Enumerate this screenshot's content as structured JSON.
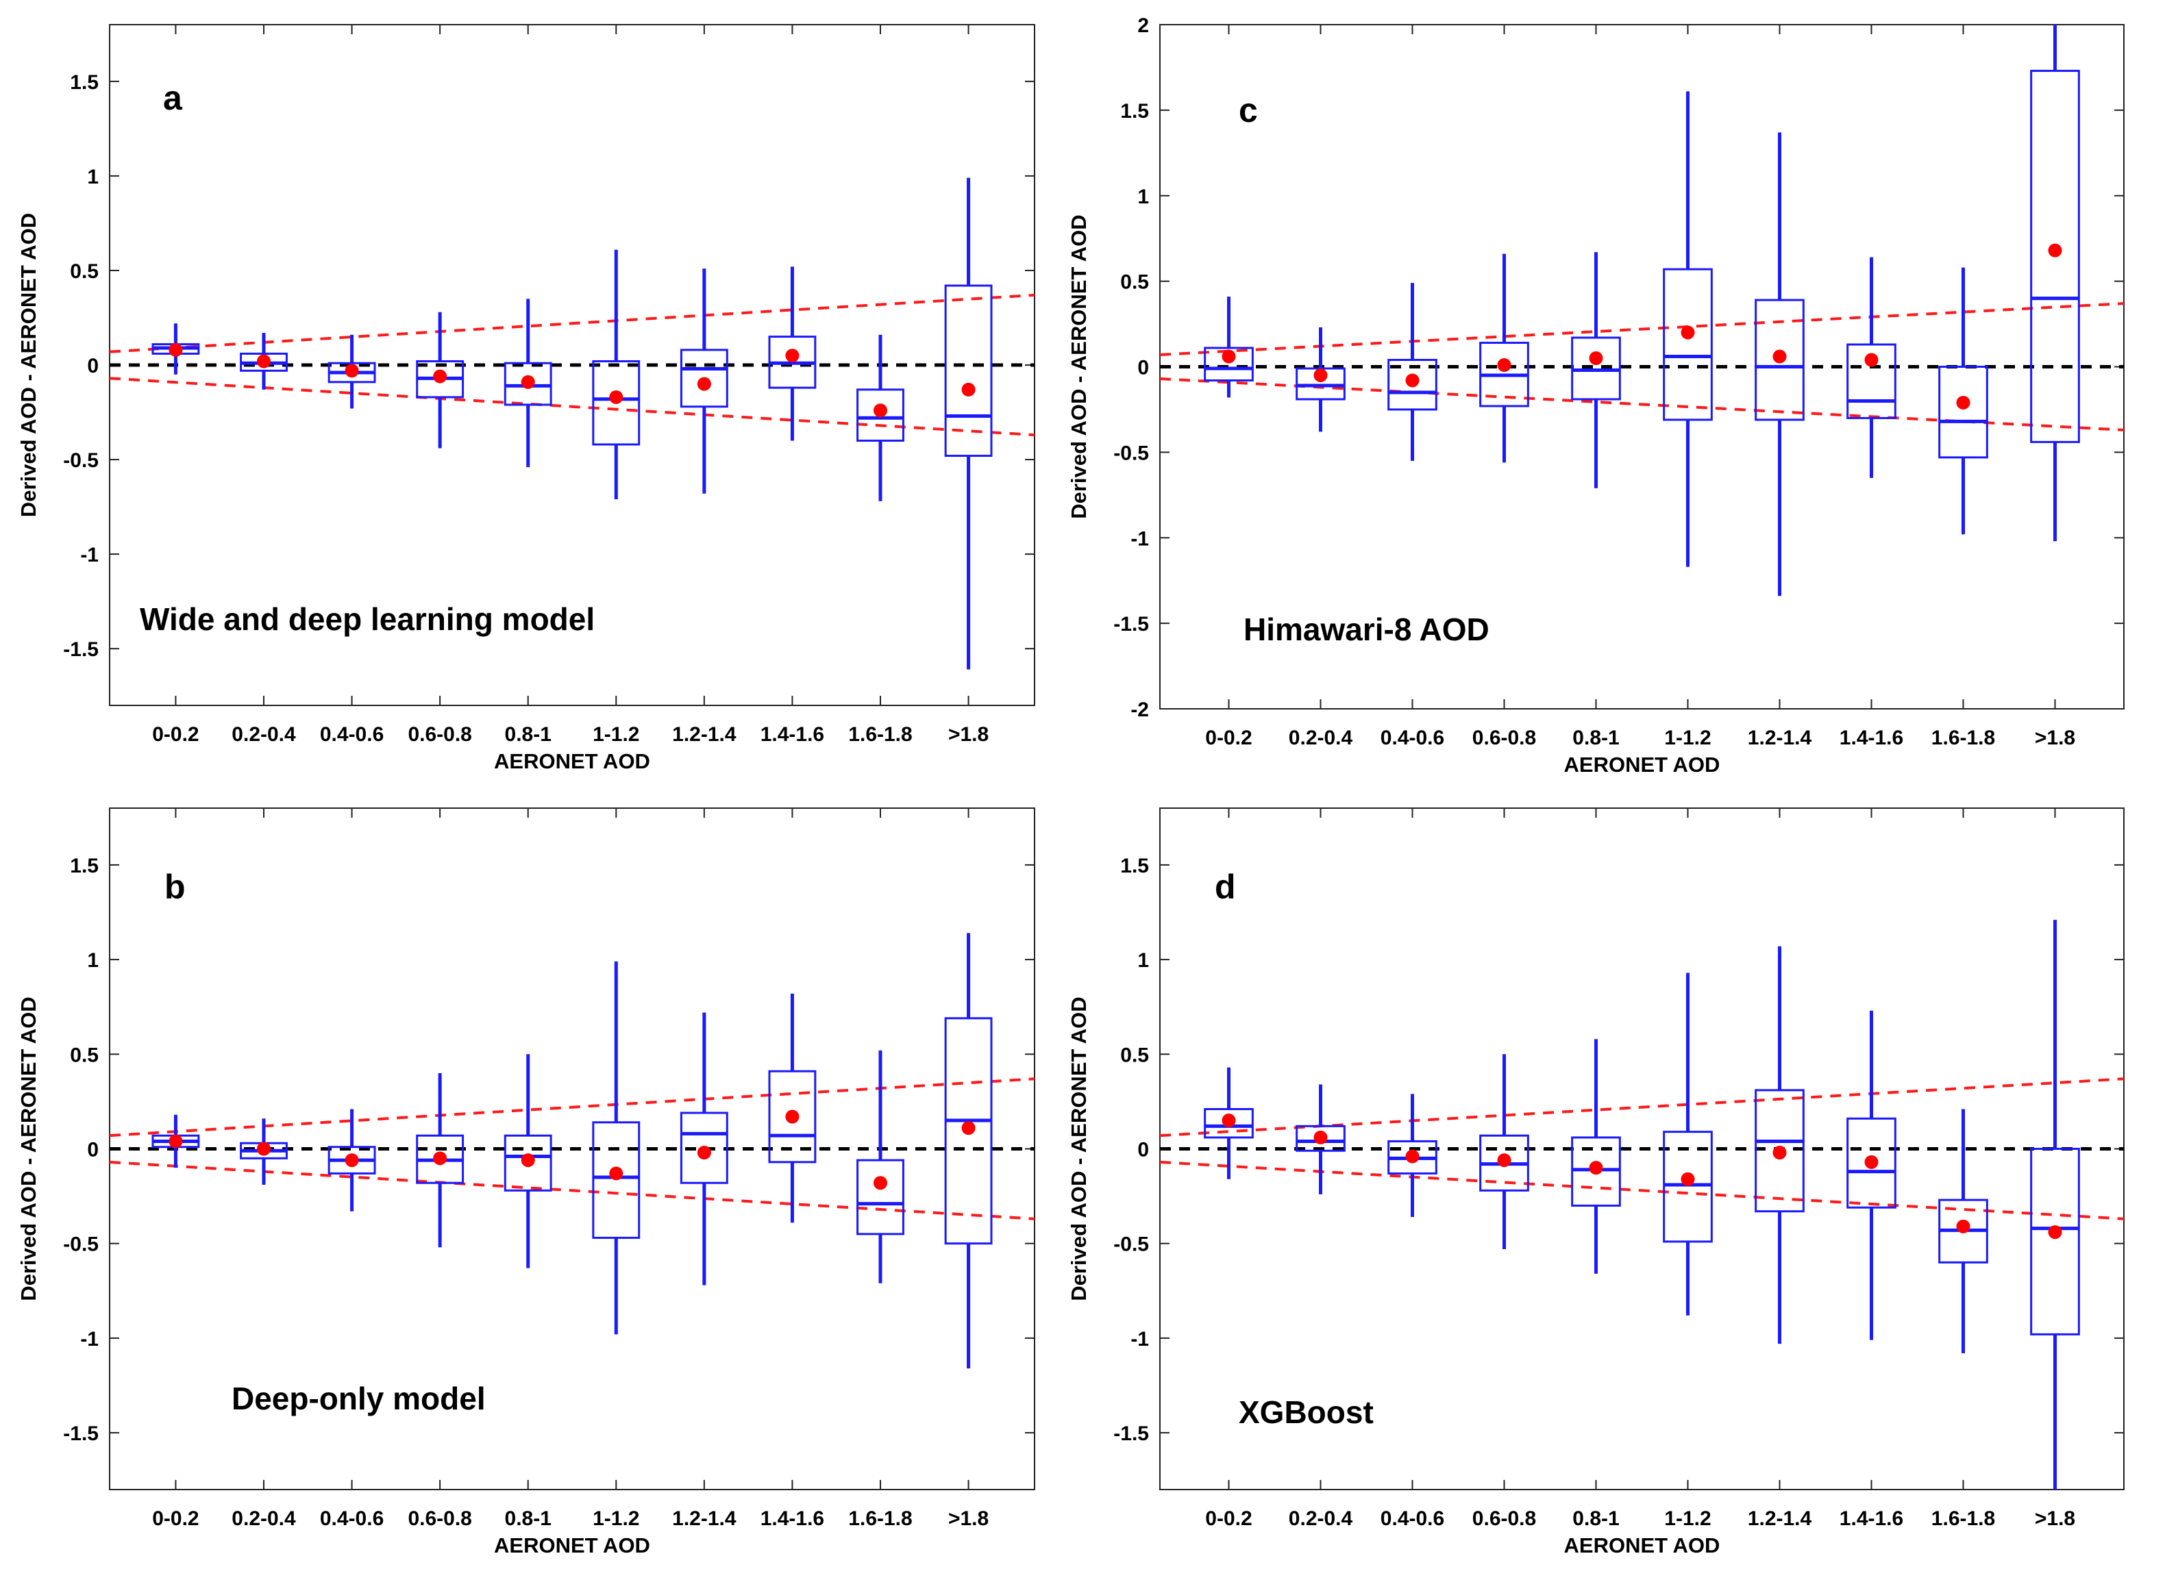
{
  "chart_data": [
    {
      "type": "boxplot",
      "panel_label": "a",
      "annotation": "Wide and deep learning model",
      "xlabel": "AERONET AOD",
      "ylabel": "Derived AOD - AERONET AOD",
      "ylim": [
        -1.8,
        1.8
      ],
      "yticks": [
        -1.5,
        -1,
        -0.5,
        0,
        0.5,
        1,
        1.5
      ],
      "categories": [
        "0-0.2",
        "0.2-0.4",
        "0.4-0.6",
        "0.6-0.8",
        "0.8-1",
        "1-1.2",
        "1.2-1.4",
        "1.4-1.6",
        "1.6-1.8",
        ">1.8"
      ],
      "boxes": [
        {
          "whisker_low": -0.05,
          "q1": 0.06,
          "median": 0.09,
          "q3": 0.11,
          "whisker_high": 0.22,
          "mean": 0.08
        },
        {
          "whisker_low": -0.13,
          "q1": -0.03,
          "median": 0.01,
          "q3": 0.06,
          "whisker_high": 0.17,
          "mean": 0.02
        },
        {
          "whisker_low": -0.23,
          "q1": -0.09,
          "median": -0.04,
          "q3": 0.01,
          "whisker_high": 0.16,
          "mean": -0.03
        },
        {
          "whisker_low": -0.44,
          "q1": -0.17,
          "median": -0.07,
          "q3": 0.02,
          "whisker_high": 0.28,
          "mean": -0.06
        },
        {
          "whisker_low": -0.54,
          "q1": -0.21,
          "median": -0.11,
          "q3": 0.01,
          "whisker_high": 0.35,
          "mean": -0.09
        },
        {
          "whisker_low": -0.71,
          "q1": -0.42,
          "median": -0.18,
          "q3": 0.02,
          "whisker_high": 0.61,
          "mean": -0.17
        },
        {
          "whisker_low": -0.68,
          "q1": -0.22,
          "median": -0.02,
          "q3": 0.08,
          "whisker_high": 0.51,
          "mean": -0.1
        },
        {
          "whisker_low": -0.4,
          "q1": -0.12,
          "median": 0.01,
          "q3": 0.15,
          "whisker_high": 0.52,
          "mean": 0.05
        },
        {
          "whisker_low": -0.72,
          "q1": -0.4,
          "median": -0.28,
          "q3": -0.13,
          "whisker_high": 0.16,
          "mean": -0.24
        },
        {
          "whisker_low": -1.61,
          "q1": -0.48,
          "median": -0.27,
          "q3": 0.42,
          "whisker_high": 0.99,
          "mean": -0.13
        }
      ]
    },
    {
      "type": "boxplot",
      "panel_label": "b",
      "annotation": "Deep-only model",
      "xlabel": "AERONET AOD",
      "ylabel": "Derived AOD - AERONET AOD",
      "ylim": [
        -1.8,
        1.8
      ],
      "yticks": [
        -1.5,
        -1,
        -0.5,
        0,
        0.5,
        1,
        1.5
      ],
      "categories": [
        "0-0.2",
        "0.2-0.4",
        "0.4-0.6",
        "0.6-0.8",
        "0.8-1",
        "1-1.2",
        "1.2-1.4",
        "1.4-1.6",
        "1.6-1.8",
        ">1.8"
      ],
      "boxes": [
        {
          "whisker_low": -0.1,
          "q1": 0.01,
          "median": 0.04,
          "q3": 0.07,
          "whisker_high": 0.18,
          "mean": 0.04
        },
        {
          "whisker_low": -0.19,
          "q1": -0.05,
          "median": -0.01,
          "q3": 0.03,
          "whisker_high": 0.16,
          "mean": 0.0
        },
        {
          "whisker_low": -0.33,
          "q1": -0.13,
          "median": -0.06,
          "q3": 0.01,
          "whisker_high": 0.21,
          "mean": -0.06
        },
        {
          "whisker_low": -0.52,
          "q1": -0.18,
          "median": -0.06,
          "q3": 0.07,
          "whisker_high": 0.4,
          "mean": -0.05
        },
        {
          "whisker_low": -0.63,
          "q1": -0.22,
          "median": -0.04,
          "q3": 0.07,
          "whisker_high": 0.5,
          "mean": -0.06
        },
        {
          "whisker_low": -0.98,
          "q1": -0.47,
          "median": -0.15,
          "q3": 0.14,
          "whisker_high": 0.99,
          "mean": -0.13
        },
        {
          "whisker_low": -0.72,
          "q1": -0.18,
          "median": 0.08,
          "q3": 0.19,
          "whisker_high": 0.72,
          "mean": -0.02
        },
        {
          "whisker_low": -0.39,
          "q1": -0.07,
          "median": 0.07,
          "q3": 0.41,
          "whisker_high": 0.82,
          "mean": 0.17
        },
        {
          "whisker_low": -0.71,
          "q1": -0.45,
          "median": -0.29,
          "q3": -0.06,
          "whisker_high": 0.52,
          "mean": -0.18
        },
        {
          "whisker_low": -1.16,
          "q1": -0.5,
          "median": 0.15,
          "q3": 0.69,
          "whisker_high": 1.14,
          "mean": 0.11
        }
      ]
    },
    {
      "type": "boxplot",
      "panel_label": "c",
      "annotation": "Himawari-8 AOD",
      "xlabel": "AERONET AOD",
      "ylabel": "Derived AOD - AERONET AOD",
      "ylim": [
        -2,
        2
      ],
      "yticks": [
        -2,
        -1.5,
        -1,
        -0.5,
        0,
        0.5,
        1,
        1.5,
        2
      ],
      "categories": [
        "0-0.2",
        "0.2-0.4",
        "0.4-0.6",
        "0.6-0.8",
        "0.8-1",
        "1-1.2",
        "1.2-1.4",
        "1.4-1.6",
        "1.6-1.8",
        ">1.8"
      ],
      "boxes": [
        {
          "whisker_low": -0.18,
          "q1": -0.08,
          "median": -0.01,
          "q3": 0.11,
          "whisker_high": 0.41,
          "mean": 0.06
        },
        {
          "whisker_low": -0.38,
          "q1": -0.19,
          "median": -0.11,
          "q3": -0.01,
          "whisker_high": 0.23,
          "mean": -0.05
        },
        {
          "whisker_low": -0.55,
          "q1": -0.25,
          "median": -0.15,
          "q3": 0.04,
          "whisker_high": 0.49,
          "mean": -0.08
        },
        {
          "whisker_low": -0.56,
          "q1": -0.23,
          "median": -0.05,
          "q3": 0.14,
          "whisker_high": 0.66,
          "mean": 0.01
        },
        {
          "whisker_low": -0.71,
          "q1": -0.19,
          "median": -0.02,
          "q3": 0.17,
          "whisker_high": 0.67,
          "mean": 0.05
        },
        {
          "whisker_low": -1.17,
          "q1": -0.31,
          "median": 0.06,
          "q3": 0.57,
          "whisker_high": 1.61,
          "mean": 0.2
        },
        {
          "whisker_low": -1.34,
          "q1": -0.31,
          "median": 0.0,
          "q3": 0.39,
          "whisker_high": 1.37,
          "mean": 0.06
        },
        {
          "whisker_low": -0.65,
          "q1": -0.3,
          "median": -0.2,
          "q3": 0.13,
          "whisker_high": 0.64,
          "mean": 0.04
        },
        {
          "whisker_low": -0.98,
          "q1": -0.53,
          "median": -0.32,
          "q3": 0.0,
          "whisker_high": 0.58,
          "mean": -0.21
        },
        {
          "whisker_low": -1.02,
          "q1": -0.44,
          "median": 0.4,
          "q3": 1.73,
          "whisker_high": 2.0,
          "mean": 0.68
        }
      ]
    },
    {
      "type": "boxplot",
      "panel_label": "d",
      "annotation": "XGBoost",
      "xlabel": "AERONET AOD",
      "ylabel": "Derived AOD - AERONET AOD",
      "ylim": [
        -1.8,
        1.8
      ],
      "yticks": [
        -1.5,
        -1,
        -0.5,
        0,
        0.5,
        1,
        1.5
      ],
      "categories": [
        "0-0.2",
        "0.2-0.4",
        "0.4-0.6",
        "0.6-0.8",
        "0.8-1",
        "1-1.2",
        "1.2-1.4",
        "1.4-1.6",
        "1.6-1.8",
        ">1.8"
      ],
      "boxes": [
        {
          "whisker_low": -0.16,
          "q1": 0.06,
          "median": 0.12,
          "q3": 0.21,
          "whisker_high": 0.43,
          "mean": 0.15
        },
        {
          "whisker_low": -0.24,
          "q1": -0.01,
          "median": 0.04,
          "q3": 0.12,
          "whisker_high": 0.34,
          "mean": 0.06
        },
        {
          "whisker_low": -0.36,
          "q1": -0.13,
          "median": -0.05,
          "q3": 0.04,
          "whisker_high": 0.29,
          "mean": -0.04
        },
        {
          "whisker_low": -0.53,
          "q1": -0.22,
          "median": -0.08,
          "q3": 0.07,
          "whisker_high": 0.5,
          "mean": -0.06
        },
        {
          "whisker_low": -0.66,
          "q1": -0.3,
          "median": -0.11,
          "q3": 0.06,
          "whisker_high": 0.58,
          "mean": -0.1
        },
        {
          "whisker_low": -0.88,
          "q1": -0.49,
          "median": -0.19,
          "q3": 0.09,
          "whisker_high": 0.93,
          "mean": -0.16
        },
        {
          "whisker_low": -1.03,
          "q1": -0.33,
          "median": 0.04,
          "q3": 0.31,
          "whisker_high": 1.07,
          "mean": -0.02
        },
        {
          "whisker_low": -1.01,
          "q1": -0.31,
          "median": -0.12,
          "q3": 0.16,
          "whisker_high": 0.73,
          "mean": -0.07
        },
        {
          "whisker_low": -1.08,
          "q1": -0.6,
          "median": -0.43,
          "q3": -0.27,
          "whisker_high": 0.21,
          "mean": -0.41
        },
        {
          "whisker_low": -1.8,
          "q1": -0.98,
          "median": -0.42,
          "q3": 0.0,
          "whisker_high": 1.21,
          "mean": -0.44
        }
      ]
    }
  ]
}
